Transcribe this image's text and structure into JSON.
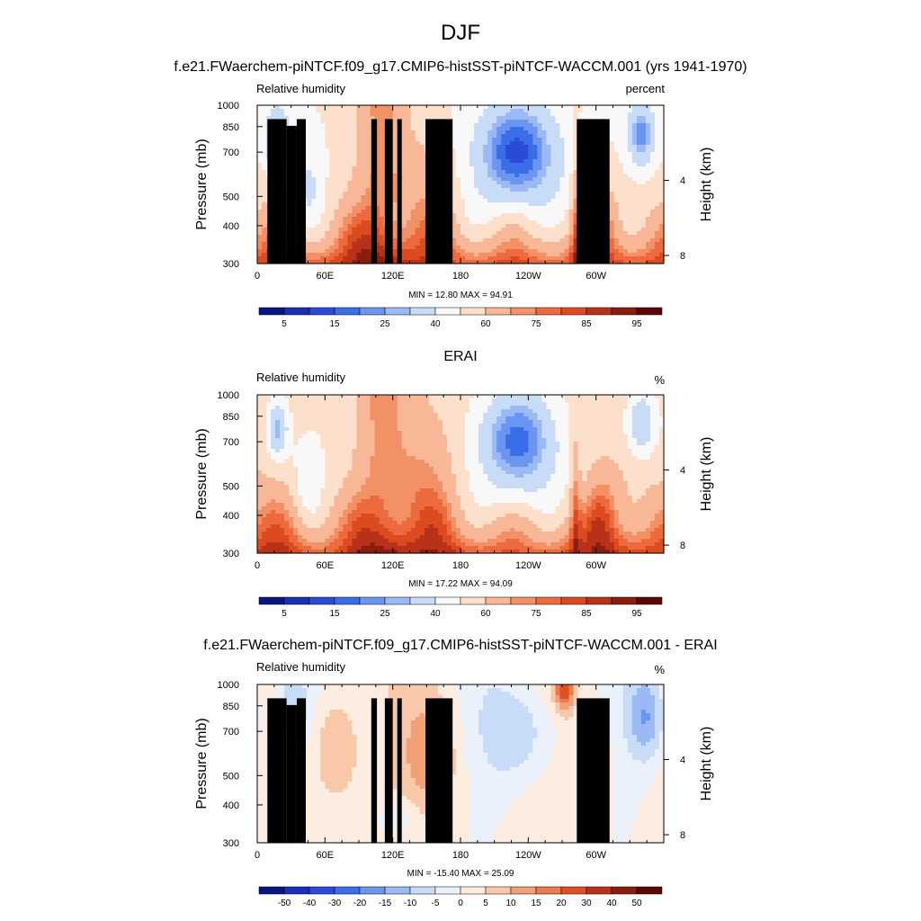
{
  "figure": {
    "title": "DJF"
  },
  "colors": {
    "rh_scale": [
      "#0a1680",
      "#1a2fb4",
      "#2a4bd6",
      "#3a6ee8",
      "#6a95f0",
      "#9bb9f4",
      "#c8dcf8",
      "#f8f8f8",
      "#fde0cc",
      "#f8b898",
      "#f29066",
      "#ec6a3e",
      "#dc4a20",
      "#b8321a",
      "#8a1c10",
      "#5c0808"
    ],
    "diff_scale": [
      "#0a1680",
      "#1a2fb4",
      "#2a4bd6",
      "#3a6ee8",
      "#6a95f0",
      "#9bb9f4",
      "#c8dcf8",
      "#eaf1fb",
      "#fdece0",
      "#f8c8a8",
      "#f2a078",
      "#ec7a4c",
      "#dc5226",
      "#b8321a",
      "#8a1c10",
      "#5c0808"
    ],
    "terrain": "#000000"
  },
  "chart_data": [
    {
      "type": "heatmap",
      "title": "f.e21.FWaerchem-piNTCF.f09_g17.CMIP6-histSST-piNTCF-WACCM.001 (yrs 1941-1970)",
      "left_label": "Relative humidity",
      "right_label": "percent",
      "ylabel": "Pressure (mb)",
      "y2label": "Height (km)",
      "stats": "MIN =  12.80  MAX =  94.91",
      "min": 12.8,
      "max": 94.91,
      "kind": "model",
      "x_ticks": [
        {
          "v": 0,
          "t": "0"
        },
        {
          "v": 60,
          "t": "60E"
        },
        {
          "v": 120,
          "t": "120E"
        },
        {
          "v": 180,
          "t": "180"
        },
        {
          "v": 240,
          "t": "120W"
        },
        {
          "v": 300,
          "t": "60W"
        }
      ],
      "y_ticks": [
        300,
        400,
        500,
        700,
        850,
        1000
      ],
      "y2_ticks": [
        {
          "km": 8,
          "t": "8"
        },
        {
          "km": 4,
          "t": "4"
        }
      ],
      "xlim": [
        0,
        360
      ],
      "ylim": [
        1000,
        300
      ],
      "colorbar_labels": [
        "5",
        "15",
        "25",
        "40",
        "60",
        "75",
        "85",
        "95"
      ],
      "terrain": [
        {
          "x": [
            9,
            26
          ],
          "p_top": 900
        },
        {
          "x": [
            26,
            35
          ],
          "p_top": 855
        },
        {
          "x": [
            35,
            43
          ],
          "p_top": 900
        },
        {
          "x": [
            101,
            106
          ],
          "p_top": 900
        },
        {
          "x": [
            113,
            120
          ],
          "p_top": 900
        },
        {
          "x": [
            124,
            128
          ],
          "p_top": 900
        },
        {
          "x": [
            149,
            173
          ],
          "p_top": 900
        },
        {
          "x": [
            283,
            312
          ],
          "p_top": 900
        }
      ]
    },
    {
      "type": "heatmap",
      "title": "ERAI",
      "left_label": "Relative humidity",
      "right_label": "%",
      "ylabel": "Pressure (mb)",
      "y2label": "Height (km)",
      "stats": "MIN =  17.22  MAX =  94.09",
      "min": 17.22,
      "max": 94.09,
      "kind": "obs",
      "x_ticks": [
        {
          "v": 0,
          "t": "0"
        },
        {
          "v": 60,
          "t": "60E"
        },
        {
          "v": 120,
          "t": "120E"
        },
        {
          "v": 180,
          "t": "180"
        },
        {
          "v": 240,
          "t": "120W"
        },
        {
          "v": 300,
          "t": "60W"
        }
      ],
      "y_ticks": [
        300,
        400,
        500,
        700,
        850,
        1000
      ],
      "y2_ticks": [
        {
          "km": 8,
          "t": "8"
        },
        {
          "km": 4,
          "t": "4"
        }
      ],
      "xlim": [
        0,
        360
      ],
      "ylim": [
        1000,
        300
      ],
      "colorbar_labels": [
        "5",
        "15",
        "25",
        "40",
        "60",
        "75",
        "85",
        "95"
      ],
      "terrain": []
    },
    {
      "type": "heatmap",
      "title": "f.e21.FWaerchem-piNTCF.f09_g17.CMIP6-histSST-piNTCF-WACCM.001 - ERAI",
      "left_label": "Relative humidity",
      "right_label": "%",
      "ylabel": "Pressure (mb)",
      "y2label": "Height (km)",
      "stats": "MIN = -15.40  MAX =  25.09",
      "min": -15.4,
      "max": 25.09,
      "kind": "diff",
      "x_ticks": [
        {
          "v": 0,
          "t": "0"
        },
        {
          "v": 60,
          "t": "60E"
        },
        {
          "v": 120,
          "t": "120E"
        },
        {
          "v": 180,
          "t": "180"
        },
        {
          "v": 240,
          "t": "120W"
        },
        {
          "v": 300,
          "t": "60W"
        }
      ],
      "y_ticks": [
        300,
        400,
        500,
        700,
        850,
        1000
      ],
      "y2_ticks": [
        {
          "km": 8,
          "t": "8"
        },
        {
          "km": 4,
          "t": "4"
        }
      ],
      "xlim": [
        0,
        360
      ],
      "ylim": [
        1000,
        300
      ],
      "colorbar_labels": [
        "-50",
        "-40",
        "-30",
        "-20",
        "-15",
        "-10",
        "-5",
        "0",
        "5",
        "10",
        "15",
        "20",
        "30",
        "40",
        "50"
      ],
      "terrain": [
        {
          "x": [
            9,
            26
          ],
          "p_top": 900
        },
        {
          "x": [
            26,
            35
          ],
          "p_top": 855
        },
        {
          "x": [
            35,
            43
          ],
          "p_top": 900
        },
        {
          "x": [
            101,
            106
          ],
          "p_top": 900
        },
        {
          "x": [
            113,
            120
          ],
          "p_top": 900
        },
        {
          "x": [
            124,
            128
          ],
          "p_top": 900
        },
        {
          "x": [
            149,
            173
          ],
          "p_top": 900
        },
        {
          "x": [
            283,
            312
          ],
          "p_top": 900
        }
      ]
    }
  ]
}
